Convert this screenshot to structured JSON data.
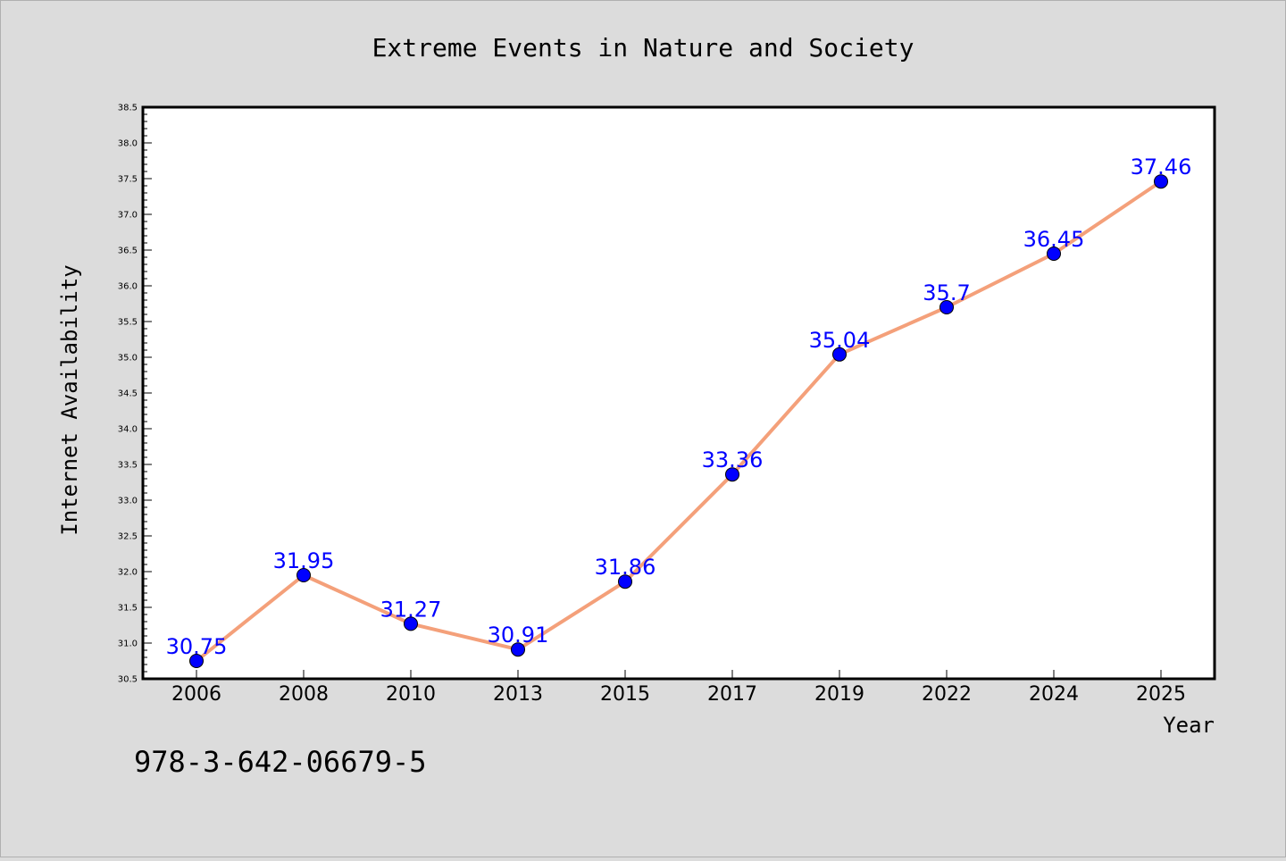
{
  "chart_data": {
    "type": "line",
    "title": "Extreme Events in Nature and Society",
    "xlabel": "Year",
    "ylabel": "Internet Availability",
    "categories": [
      "2006",
      "2008",
      "2010",
      "2013",
      "2015",
      "2017",
      "2019",
      "2022",
      "2024",
      "2025"
    ],
    "series": [
      {
        "values": [
          30.75,
          31.95,
          31.27,
          30.91,
          31.86,
          33.36,
          35.04,
          35.7,
          36.45,
          37.46
        ],
        "line_color": "#f4a07a",
        "marker_color": "#0000ff"
      }
    ],
    "data_labels": [
      "30.75",
      "31.95",
      "31.27",
      "30.91",
      "31.86",
      "33.36",
      "35.04",
      "35.7",
      "36.45",
      "37.46"
    ],
    "ylim": [
      30.5,
      38.5
    ],
    "yticks": [
      "30.5",
      "31.0",
      "31.5",
      "32.0",
      "32.5",
      "33.0",
      "33.5",
      "34.0",
      "34.5",
      "35.0",
      "35.5",
      "36.0",
      "36.5",
      "37.0",
      "37.5",
      "38.0",
      "38.5"
    ],
    "grid": false,
    "legend": "none"
  },
  "annotation": "978-3-642-06679-5"
}
